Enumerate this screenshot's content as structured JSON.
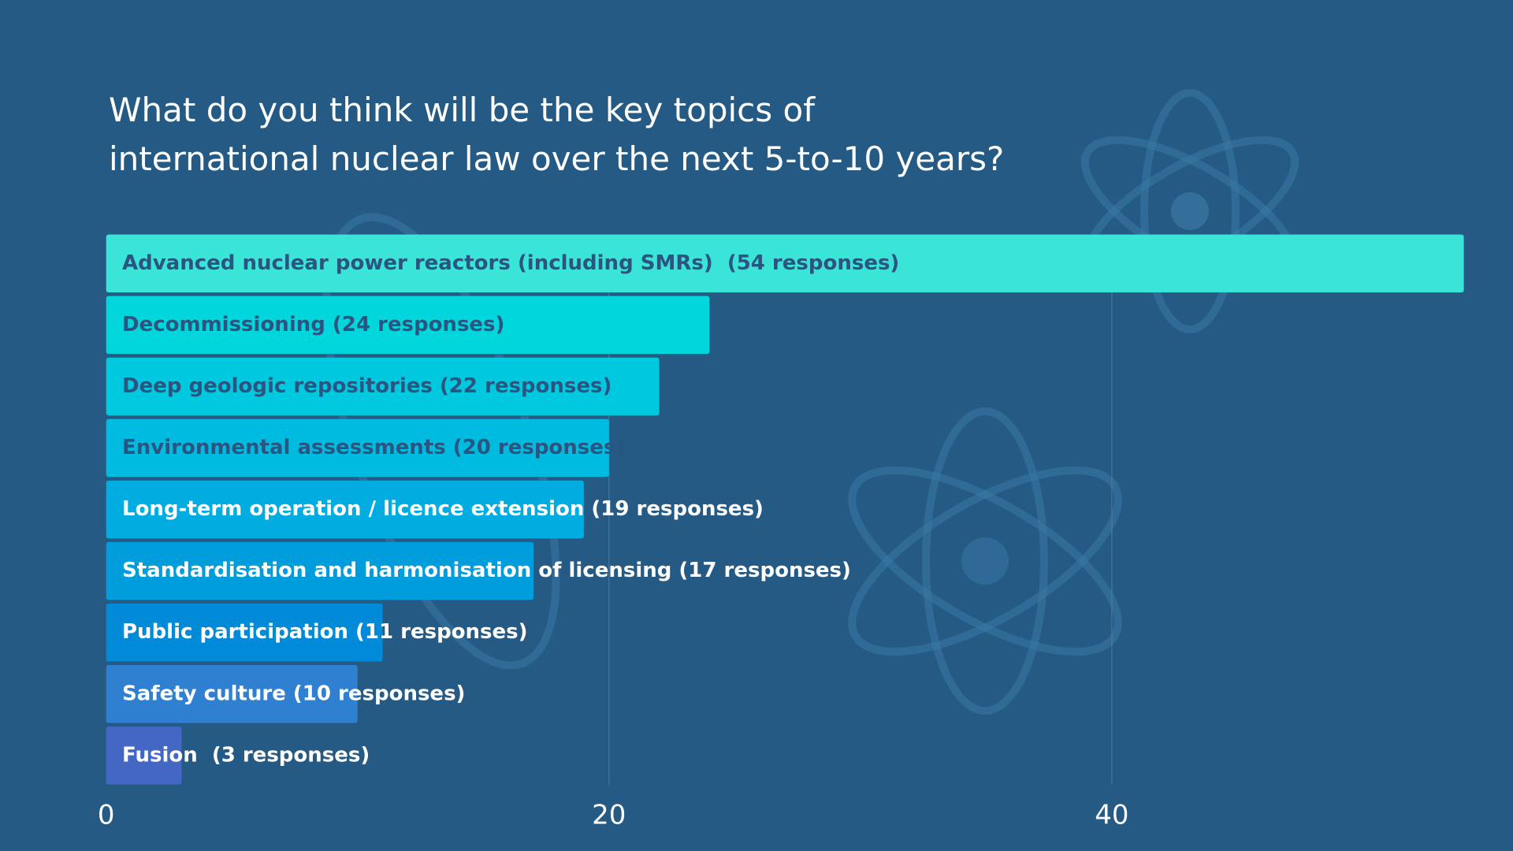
{
  "chart_data": {
    "type": "hbar",
    "title": [
      "What do you think will be the key topics of",
      "international nuclear law over the next 5-to-10 years?"
    ],
    "categories": [
      "Advanced nuclear power reactors (including SMRs)  (54 responses)",
      "Decommissioning (24 responses)",
      "Deep geologic repositories (22 responses)",
      "Environmental assessments (20 responses)",
      "Long-term operation / licence extension (19 responses)",
      "Standardisation and harmonisation of licensing (17 responses)",
      "Public participation (11 responses)",
      "Safety culture (10 responses)",
      "Fusion  (3 responses)"
    ],
    "values": [
      54,
      24,
      22,
      20,
      19,
      17,
      11,
      10,
      3
    ],
    "colors": [
      "#3ae4d6",
      "#00d6db",
      "#00c9df",
      "#00bbe0",
      "#00ace0",
      "#009ddd",
      "#008ad8",
      "#2f80d0",
      "#4467c4"
    ],
    "label_colors": [
      "#2b5580",
      "#2b5580",
      "#2b5580",
      "#2b5580",
      "#ffffff",
      "#ffffff",
      "#ffffff",
      "#ffffff",
      "#ffffff"
    ],
    "xlim": [
      0,
      54
    ],
    "xticks": [
      0,
      20,
      40
    ],
    "grid": true
  }
}
